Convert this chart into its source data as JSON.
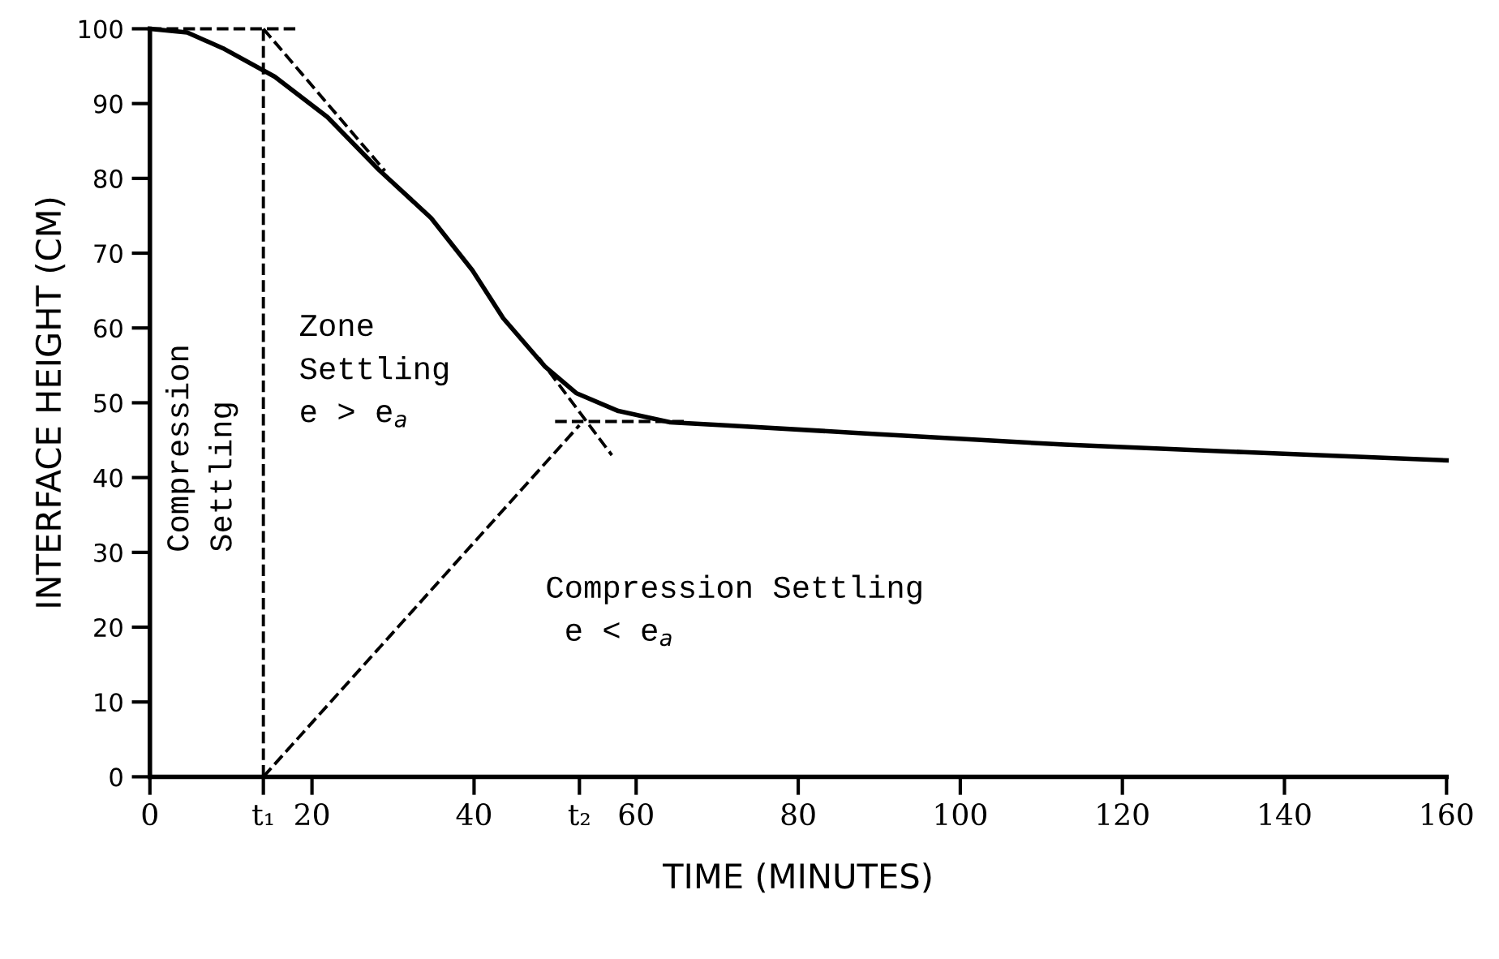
{
  "chart_data": {
    "type": "line",
    "xlabel": "TIME (MINUTES)",
    "ylabel": "INTERFACE HEIGHT (CM)",
    "xlim": [
      0,
      160
    ],
    "ylim": [
      0,
      100
    ],
    "xticks": [
      0,
      {
        "value": 14,
        "label": "t₁"
      },
      20,
      40,
      {
        "value": 53,
        "label": "t₂"
      },
      60,
      80,
      100,
      120,
      140,
      160
    ],
    "yticks": [
      0,
      10,
      20,
      30,
      40,
      50,
      60,
      70,
      80,
      90,
      100
    ],
    "series": [
      {
        "color": "#000000",
        "line_style": "solid",
        "x": [
          0,
          4.6,
          9,
          15.4,
          21.9,
          28.3,
          34.7,
          39.8,
          43.6,
          48.7,
          52.6,
          57.8,
          64.2,
          70.6,
          90,
          112.9,
          135,
          160
        ],
        "values": [
          100,
          99.5,
          97.4,
          93.6,
          88.2,
          81.1,
          74.7,
          67.7,
          61.3,
          54.9,
          51.3,
          48.9,
          47.4,
          47,
          45.8,
          44.4,
          43.4,
          42.3
        ]
      },
      {
        "color": "#000000",
        "line_style": "dashed",
        "x": [
          0,
          18
        ],
        "values": [
          100,
          100
        ]
      },
      {
        "color": "#000000",
        "line_style": "dashed",
        "x": [
          14,
          29
        ],
        "values": [
          100,
          81
        ]
      },
      {
        "color": "#000000",
        "line_style": "dashed",
        "x": [
          48,
          57
        ],
        "values": [
          56,
          43
        ]
      },
      {
        "color": "#000000",
        "line_style": "dashed",
        "x": [
          50,
          66
        ],
        "values": [
          47.5,
          47.5
        ]
      },
      {
        "color": "#000000",
        "line_style": "dashed",
        "x": [
          14,
          53
        ],
        "values": [
          0,
          47
        ]
      }
    ],
    "ref_lines": [
      {
        "axis": "x",
        "value": 14,
        "color": "#000000",
        "line_style": "dashed"
      }
    ],
    "annotations": [
      "Compression\nSettling",
      "Zone\nSettling\ne > e$_{a}$",
      "Compression Settling\n e < e$_{a}$"
    ]
  }
}
